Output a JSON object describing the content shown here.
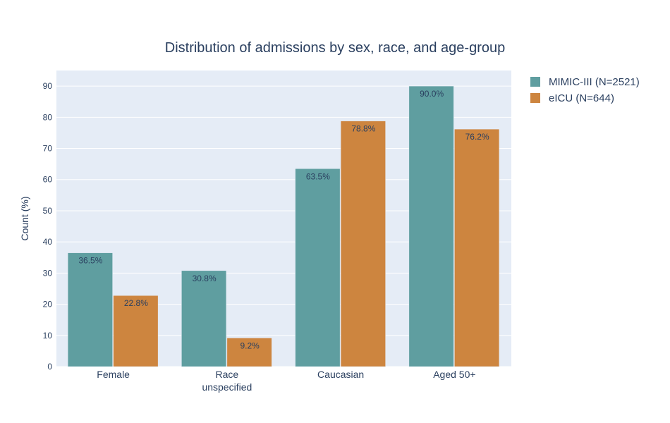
{
  "chart_data": {
    "type": "bar",
    "title": "Distribution of admissions by sex, race, and age-group",
    "ylabel": "Count (%)",
    "xlabel": "",
    "ylim": [
      0,
      95
    ],
    "yticks": [
      0,
      10,
      20,
      30,
      40,
      50,
      60,
      70,
      80,
      90
    ],
    "categories": [
      "Female",
      "Race\nunspecified",
      "Caucasian",
      "Aged 50+"
    ],
    "series": [
      {
        "name": "MIMIC-III (N=2521)",
        "color": "#5f9ea0",
        "values": [
          36.5,
          30.8,
          63.5,
          90.0
        ],
        "labels": [
          "36.5%",
          "30.8%",
          "63.5%",
          "90.0%"
        ]
      },
      {
        "name": "eICU (N=644)",
        "color": "#cd853f",
        "values": [
          22.8,
          9.2,
          78.8,
          76.2
        ],
        "labels": [
          "22.8%",
          "9.2%",
          "78.8%",
          "76.2%"
        ]
      }
    ],
    "grid": true,
    "legend": "top-right"
  }
}
